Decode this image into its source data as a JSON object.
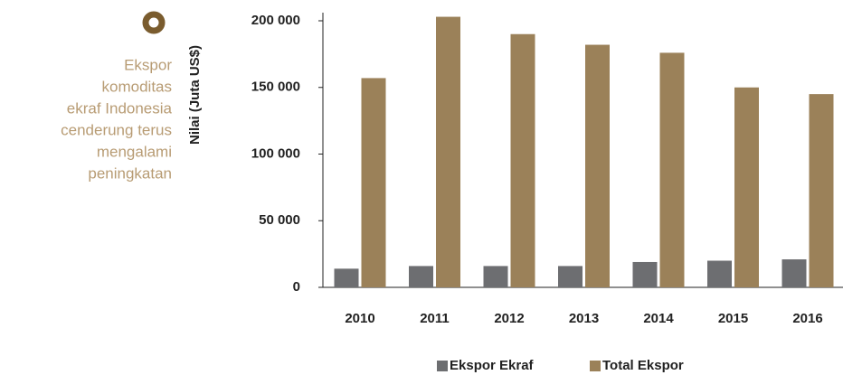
{
  "chart_data": {
    "type": "bar",
    "note": [
      "Ekspor",
      "komoditas",
      "ekraf Indonesia",
      "cenderung terus",
      "mengalami",
      "peningkatan"
    ],
    "y_label": "Nilai (Juta US$)",
    "categories": [
      "2010",
      "2011",
      "2012",
      "2013",
      "2014",
      "2015",
      "2016"
    ],
    "series": [
      {
        "name": "Ekspor Ekraf",
        "color": "#6d6e71",
        "values": [
          14000,
          16000,
          16000,
          16000,
          19000,
          20000,
          21000
        ]
      },
      {
        "name": "Total Ekspor",
        "color": "#9b8159",
        "values": [
          157000,
          203000,
          190000,
          182000,
          176000,
          150000,
          145000
        ]
      }
    ],
    "ylim": [
      0,
      210000
    ],
    "yticks": [
      {
        "value": 0,
        "label": "0"
      },
      {
        "value": 50000,
        "label": "50 000"
      },
      {
        "value": 100000,
        "label": "100 000"
      },
      {
        "value": 150000,
        "label": "150 000"
      },
      {
        "value": 200000,
        "label": "200 000"
      }
    ]
  }
}
